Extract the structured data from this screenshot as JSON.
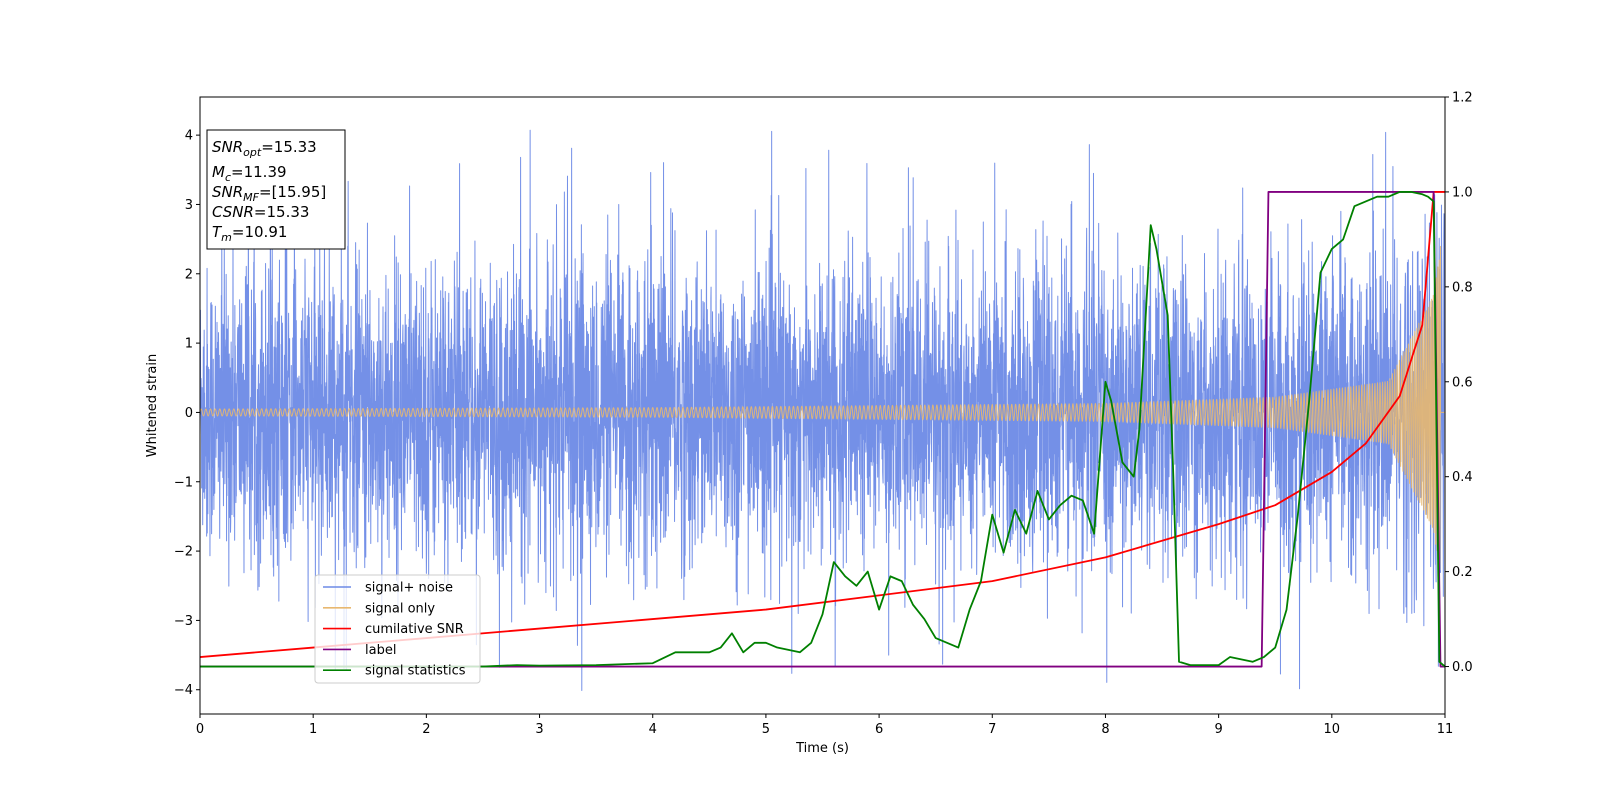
{
  "chart_data": {
    "type": "line",
    "xlabel": "Time (s)",
    "ylabel": "Whitened strain",
    "xlim": [
      0,
      11
    ],
    "ylim_left": [
      -4.35,
      4.55
    ],
    "ylim_right": [
      -0.1,
      1.2
    ],
    "xticks": [
      "0",
      "1",
      "2",
      "3",
      "4",
      "5",
      "6",
      "7",
      "8",
      "9",
      "10",
      "11"
    ],
    "yticks_left": [
      "−4",
      "−3",
      "−2",
      "−1",
      "0",
      "1",
      "2",
      "3",
      "4"
    ],
    "yticks_right": [
      "0.0",
      "0.2",
      "0.4",
      "0.6",
      "0.8",
      "1.0",
      "1.2"
    ],
    "grid": false,
    "legend_position": "lower-left",
    "info_box": [
      {
        "main": "SNR",
        "sub": "opt",
        "value": "=15.33"
      },
      {
        "main": "M",
        "sub": "c",
        "value": "=11.39"
      },
      {
        "main": "SNR",
        "sub": "MF",
        "value": "=[15.95]"
      },
      {
        "main": "CSNR",
        "sub": "",
        "value": "=15.33"
      },
      {
        "main": "T",
        "sub": "m",
        "value": "=10.91"
      }
    ],
    "series": [
      {
        "name": "signal+ noise",
        "axis": "left",
        "color": "#6d8ae6",
        "kind": "noise",
        "description_values": {
          "sigma": 1.0,
          "typical_peak": 3.3,
          "max": 4.2,
          "min": -3.95
        }
      },
      {
        "name": "signal only",
        "axis": "left",
        "color": "#e8b870",
        "kind": "chirp",
        "amplitude": {
          "x": [
            0,
            4,
            8,
            9.5,
            10.5,
            10.9,
            10.96
          ],
          "y": [
            0.05,
            0.07,
            0.13,
            0.22,
            0.45,
            1.7,
            2.4
          ]
        }
      },
      {
        "name": "cumilative SNR",
        "axis": "right",
        "color": "#ff0000",
        "x": [
          0,
          1,
          2,
          3,
          4,
          5,
          6,
          7,
          8,
          9,
          9.5,
          10,
          10.3,
          10.6,
          10.8,
          10.9,
          11
        ],
        "y": [
          0.02,
          0.04,
          0.06,
          0.08,
          0.1,
          0.12,
          0.15,
          0.18,
          0.23,
          0.3,
          0.34,
          0.41,
          0.47,
          0.57,
          0.72,
          1.0,
          1.0
        ]
      },
      {
        "name": "label",
        "axis": "right",
        "color": "#800080",
        "x": [
          0,
          9.38,
          9.44,
          10.9,
          10.96,
          11
        ],
        "y": [
          0,
          0,
          1,
          1,
          0,
          0
        ]
      },
      {
        "name": "signal statistics",
        "axis": "right",
        "color": "#008000",
        "x": [
          0,
          1,
          2,
          2.5,
          2.8,
          3,
          3.5,
          4,
          4.2,
          4.5,
          4.6,
          4.7,
          4.8,
          4.9,
          5,
          5.1,
          5.3,
          5.4,
          5.5,
          5.6,
          5.7,
          5.8,
          5.9,
          6,
          6.1,
          6.2,
          6.3,
          6.4,
          6.5,
          6.6,
          6.7,
          6.8,
          6.9,
          7,
          7.1,
          7.2,
          7.3,
          7.4,
          7.5,
          7.6,
          7.7,
          7.8,
          7.9,
          8,
          8.05,
          8.15,
          8.25,
          8.3,
          8.4,
          8.45,
          8.55,
          8.6,
          8.65,
          8.75,
          9,
          9.1,
          9.3,
          9.4,
          9.5,
          9.6,
          9.7,
          9.8,
          9.9,
          10,
          10.1,
          10.2,
          10.3,
          10.4,
          10.5,
          10.6,
          10.7,
          10.8,
          10.85,
          10.9,
          10.95,
          11
        ],
        "y": [
          0,
          0,
          0,
          0,
          0.003,
          0.002,
          0.003,
          0.007,
          0.03,
          0.03,
          0.04,
          0.07,
          0.03,
          0.05,
          0.05,
          0.04,
          0.03,
          0.05,
          0.11,
          0.22,
          0.19,
          0.17,
          0.2,
          0.12,
          0.19,
          0.18,
          0.13,
          0.1,
          0.06,
          0.05,
          0.04,
          0.12,
          0.18,
          0.32,
          0.24,
          0.33,
          0.28,
          0.37,
          0.31,
          0.34,
          0.36,
          0.35,
          0.28,
          0.6,
          0.56,
          0.43,
          0.4,
          0.5,
          0.93,
          0.88,
          0.74,
          0.4,
          0.01,
          0.003,
          0.003,
          0.02,
          0.01,
          0.02,
          0.04,
          0.12,
          0.32,
          0.56,
          0.83,
          0.88,
          0.9,
          0.97,
          0.98,
          0.99,
          0.99,
          1.0,
          1.0,
          0.995,
          0.99,
          0.98,
          0.01,
          0.0
        ]
      }
    ]
  }
}
